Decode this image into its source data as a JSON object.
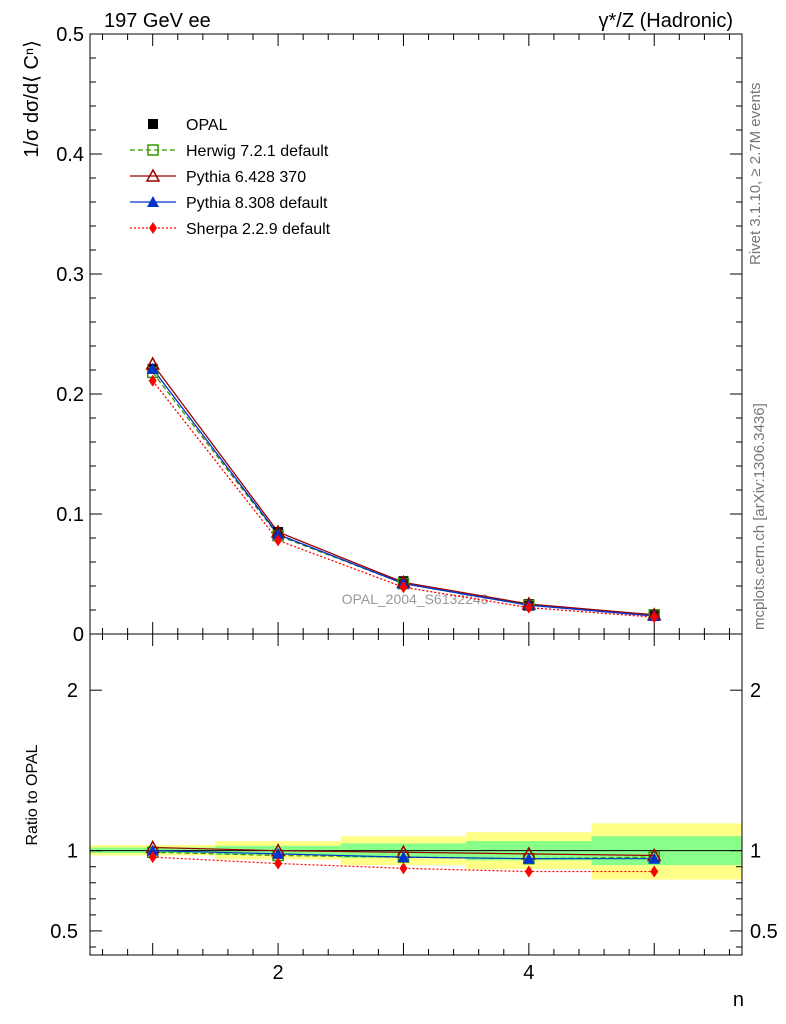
{
  "header": {
    "left": "197 GeV ee",
    "right": "γ*/Z (Hadronic)"
  },
  "side": {
    "rivet": "Rivet 3.1.10, ≥ 2.7M events",
    "mcplots": "mcplots.cern.ch [arXiv:1306.3436]"
  },
  "watermark": "OPAL_2004_S6132243",
  "chart_data": [
    {
      "type": "line",
      "panel": "main",
      "ylabel": "1/σ dσ/d⟨ Cⁿ⟩",
      "xlabel": "n",
      "xlim": [
        0.5,
        5.7
      ],
      "ylim": [
        0,
        0.5
      ],
      "yticks": [
        0,
        0.1,
        0.2,
        0.3,
        0.4,
        0.5
      ],
      "ytick_labels": [
        "0",
        "0.1",
        "0.2",
        "0.3",
        "0.4",
        "0.5"
      ],
      "x": [
        1,
        2,
        3,
        4,
        5
      ],
      "series": [
        {
          "name": "OPAL",
          "values": [
            0.221,
            0.085,
            0.044,
            0.025,
            0.016
          ],
          "color": "#000000",
          "marker": "square-filled",
          "dash": ""
        },
        {
          "name": "Herwig 7.2.1 default",
          "values": [
            0.218,
            0.082,
            0.042,
            0.024,
            0.016
          ],
          "color": "#339900",
          "marker": "square-open",
          "dash": "5,3"
        },
        {
          "name": "Pythia 6.428 370",
          "values": [
            0.225,
            0.085,
            0.043,
            0.025,
            0.016
          ],
          "color": "#990000",
          "marker": "triangle-open",
          "dash": ""
        },
        {
          "name": "Pythia 8.308 default",
          "values": [
            0.221,
            0.083,
            0.042,
            0.024,
            0.015
          ],
          "color": "#0033cc",
          "marker": "triangle-filled",
          "dash": ""
        },
        {
          "name": "Sherpa 2.2.9 default",
          "values": [
            0.211,
            0.078,
            0.039,
            0.022,
            0.014
          ],
          "color": "#ff0000",
          "marker": "diamond-filled",
          "dash": "2,2"
        }
      ],
      "legend": "top-left"
    },
    {
      "type": "line",
      "panel": "ratio",
      "ylabel": "Ratio to OPAL",
      "xlabel": "n",
      "xlim": [
        0.5,
        5.7
      ],
      "ylim": [
        0.35,
        2.35
      ],
      "yticks": [
        0.5,
        1,
        2
      ],
      "ytick_labels": [
        "0.5",
        "1",
        "2"
      ],
      "xticks": [
        2,
        4
      ],
      "xtick_labels": [
        "2",
        "4"
      ],
      "bands": [
        {
          "x": [
            0.5,
            1.5
          ],
          "inner": [
            0.985,
            1.02
          ],
          "outer": [
            0.97,
            1.035
          ]
        },
        {
          "x": [
            1.5,
            2.5
          ],
          "inner": [
            0.975,
            1.03
          ],
          "outer": [
            0.945,
            1.06
          ]
        },
        {
          "x": [
            2.5,
            3.5
          ],
          "inner": [
            0.955,
            1.045
          ],
          "outer": [
            0.91,
            1.09
          ]
        },
        {
          "x": [
            3.5,
            4.5
          ],
          "inner": [
            0.94,
            1.06
          ],
          "outer": [
            0.885,
            1.115
          ]
        },
        {
          "x": [
            4.5,
            5.7
          ],
          "inner": [
            0.91,
            1.09
          ],
          "outer": [
            0.82,
            1.17
          ]
        }
      ],
      "x": [
        1,
        2,
        3,
        4,
        5
      ],
      "series": [
        {
          "name": "Herwig 7.2.1 default",
          "values": [
            0.99,
            0.97,
            0.96,
            0.95,
            0.96
          ]
        },
        {
          "name": "Pythia 6.428 370",
          "values": [
            1.02,
            1.0,
            0.99,
            0.98,
            0.97
          ]
        },
        {
          "name": "Pythia 8.308 default",
          "values": [
            1.0,
            0.98,
            0.96,
            0.95,
            0.95
          ]
        },
        {
          "name": "Sherpa 2.2.9 default",
          "values": [
            0.96,
            0.92,
            0.89,
            0.87,
            0.87
          ]
        }
      ]
    }
  ]
}
